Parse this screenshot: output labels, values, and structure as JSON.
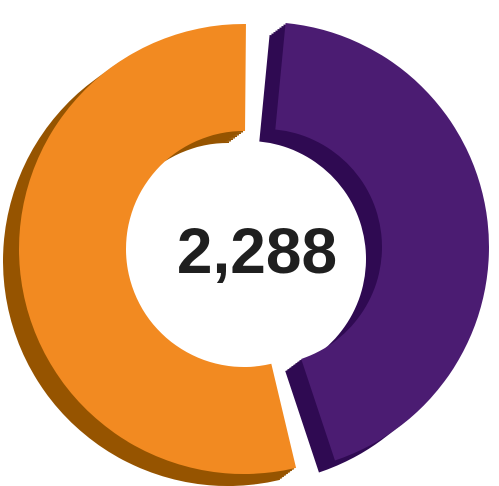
{
  "chart_data": {
    "type": "pie",
    "style": "3d-donut-exploded",
    "center_label": "2,288",
    "slices": [
      {
        "value": 1264,
        "color": "#F28A21",
        "side_color": "#965400"
      },
      {
        "value": 1024,
        "color": "#4B1C72",
        "side_color": "#2F0A52"
      }
    ]
  }
}
